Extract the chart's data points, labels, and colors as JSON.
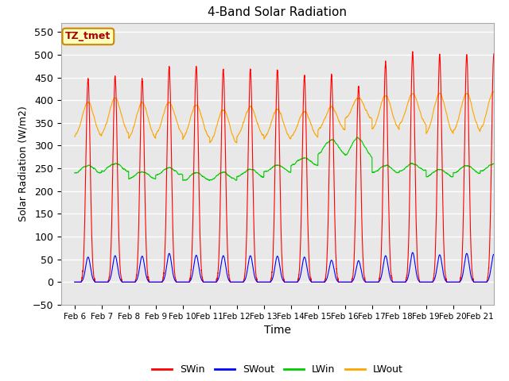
{
  "title": "4-Band Solar Radiation",
  "xlabel": "Time",
  "ylabel": "Solar Radiation (W/m2)",
  "ylim": [
    -50,
    570
  ],
  "yticks": [
    -50,
    0,
    50,
    100,
    150,
    200,
    250,
    300,
    350,
    400,
    450,
    500,
    550
  ],
  "xlim_days": [
    5.5,
    21.5
  ],
  "xtick_days": [
    6,
    7,
    8,
    9,
    10,
    11,
    12,
    13,
    14,
    15,
    16,
    17,
    18,
    19,
    20,
    21
  ],
  "xtick_labels": [
    "Feb 6",
    "Feb 7",
    "Feb 8",
    "Feb 9",
    "Feb 10",
    "Feb 11",
    "Feb 12",
    "Feb 13",
    "Feb 14",
    "Feb 15",
    "Feb 16",
    "Feb 17",
    "Feb 18",
    "Feb 19",
    "Feb 20",
    "Feb 21"
  ],
  "swin_color": "#FF0000",
  "swout_color": "#0000FF",
  "lwin_color": "#00CC00",
  "lwout_color": "#FFA500",
  "annotation_text": "TZ_tmet",
  "annotation_bbox_facecolor": "#FFFFC0",
  "annotation_bbox_edgecolor": "#CC8800",
  "annotation_text_color": "#AA0000",
  "background_color": "#E8E8E8",
  "grid_color": "white",
  "n_pts_per_day": 240,
  "n_days": 16,
  "swin_peaks": [
    447,
    453,
    447,
    474,
    475,
    467,
    468,
    466,
    454,
    455,
    430,
    483,
    505,
    500,
    500,
    500
  ],
  "swout_peaks": [
    55,
    58,
    57,
    63,
    59,
    58,
    58,
    57,
    55,
    48,
    47,
    58,
    65,
    60,
    63,
    61
  ],
  "lwin_base": [
    248,
    252,
    235,
    243,
    232,
    233,
    240,
    250,
    265,
    280,
    275,
    248,
    252,
    240,
    248,
    252
  ],
  "lwout_base": [
    315,
    320,
    310,
    320,
    310,
    300,
    315,
    310,
    315,
    330,
    355,
    330,
    340,
    320,
    325,
    330
  ],
  "lwout_peaks": [
    395,
    405,
    395,
    395,
    390,
    380,
    385,
    380,
    375,
    385,
    405,
    410,
    415,
    415,
    415,
    420
  ]
}
